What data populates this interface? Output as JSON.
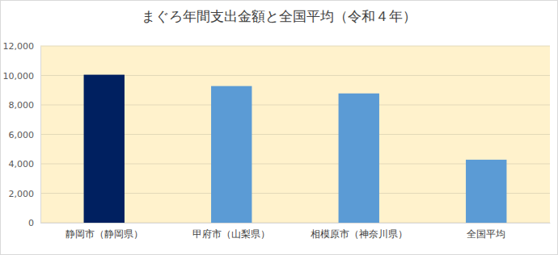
{
  "chart_data": {
    "type": "bar",
    "title": "まぐろ年間支出金額と全国平均（令和４年）",
    "categories": [
      "静岡市（静岡県）",
      "甲府市（山梨県）",
      "相模原市（神奈川県）",
      "全国平均"
    ],
    "values": [
      10050,
      9280,
      8780,
      4280
    ],
    "colors": [
      "#002060",
      "#5b9bd5",
      "#5b9bd5",
      "#5b9bd5"
    ],
    "ylim": [
      0,
      12000
    ],
    "yticks": [
      0,
      {
        "value": 2000,
        "label": "2,000"
      },
      {
        "value": 4000,
        "label": "4,000"
      },
      {
        "value": 6000,
        "label": "6,000"
      },
      {
        "value": 8000,
        "label": "8,000"
      },
      {
        "value": 10000,
        "label": "10,000"
      },
      {
        "value": 12000,
        "label": "12,000"
      }
    ],
    "grid": true
  }
}
